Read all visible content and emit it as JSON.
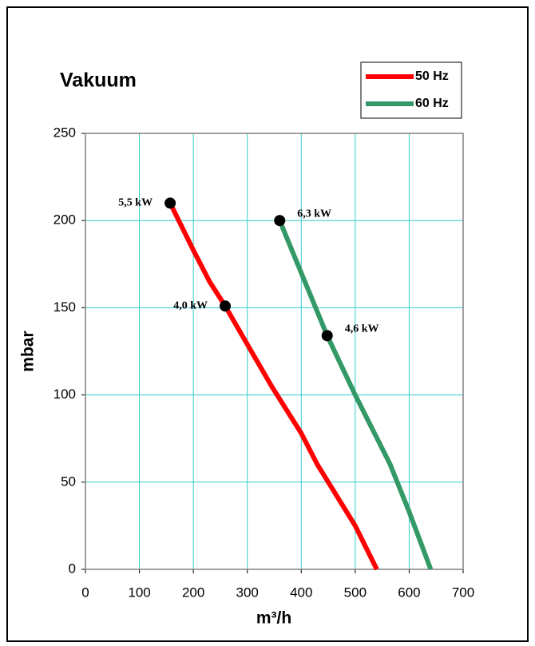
{
  "chart_data": {
    "type": "line",
    "title": "Vakuum",
    "xlabel": "m³/h",
    "ylabel": "mbar",
    "xlim": [
      0,
      700
    ],
    "xticks": [
      0,
      100,
      200,
      300,
      400,
      500,
      600,
      700
    ],
    "ylim": [
      0,
      250
    ],
    "yticks": [
      0,
      50,
      100,
      150,
      200,
      250
    ],
    "grid": true,
    "legend": "upper right",
    "series": [
      {
        "name": "50 Hz",
        "color": "#ff0000",
        "x": [
          157,
          200,
          230,
          259,
          300,
          345,
          400,
          430,
          460,
          500,
          540
        ],
        "values": [
          210,
          183,
          165,
          151,
          129,
          105,
          78,
          60,
          45,
          25,
          0
        ],
        "markers": [
          {
            "x": 157,
            "y": 210,
            "label": "5,5 kW"
          },
          {
            "x": 259,
            "y": 151,
            "label": "4,0 kW"
          }
        ]
      },
      {
        "name": "60 Hz",
        "color": "#339966",
        "x": [
          360,
          400,
          448,
          500,
          565,
          600,
          640
        ],
        "values": [
          200,
          170,
          134,
          100,
          60,
          33,
          0
        ],
        "markers": [
          {
            "x": 360,
            "y": 200,
            "label": "6,3 kW"
          },
          {
            "x": 448,
            "y": 134,
            "label": "4,6 kW"
          }
        ]
      }
    ]
  }
}
